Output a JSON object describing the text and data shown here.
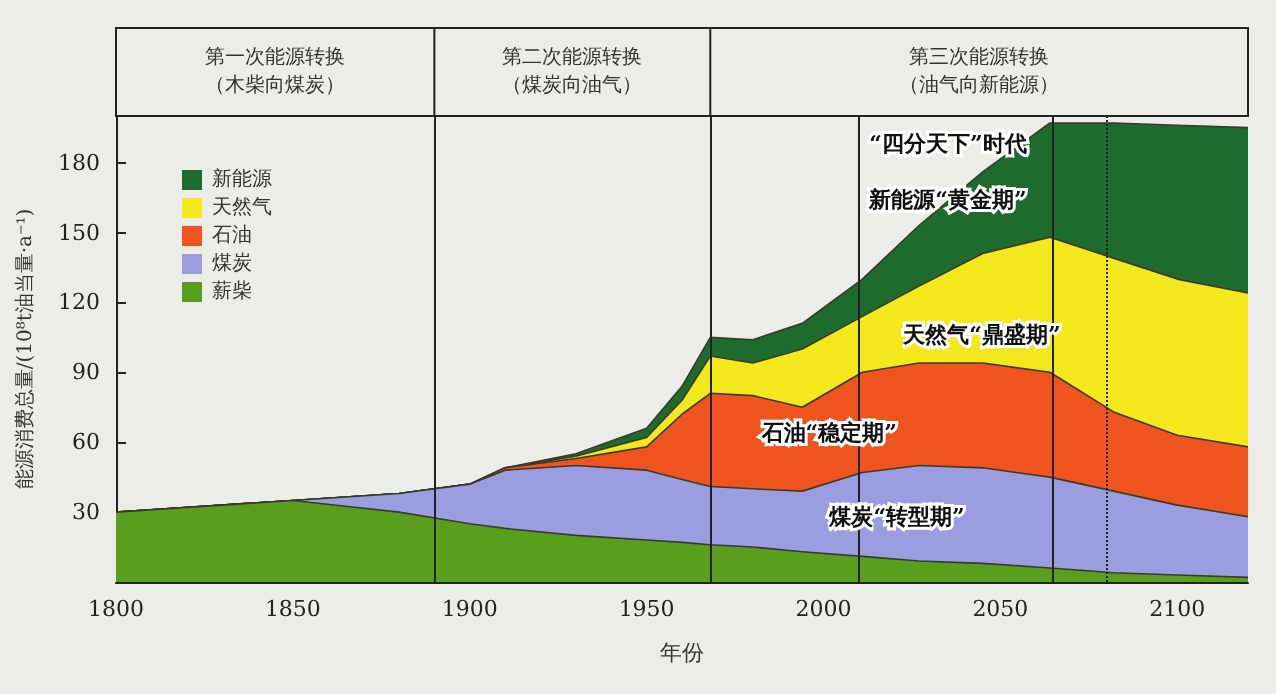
{
  "chart_data": {
    "type": "area",
    "stacked": true,
    "xlabel": "年份",
    "ylabel": "能源消费总量/(10⁸t油当量·a⁻¹)",
    "x": [
      1800,
      1850,
      1880,
      1900,
      1910,
      1930,
      1950,
      1960,
      1968,
      1980,
      1994,
      2011,
      2027,
      2045,
      2064,
      2082,
      2100,
      2120
    ],
    "xlim": [
      1800,
      2120
    ],
    "xticks": [
      1800,
      1850,
      1900,
      1950,
      2000,
      2050,
      2100
    ],
    "ylim": [
      0,
      200
    ],
    "yticks": [
      30,
      60,
      90,
      120,
      150,
      180
    ],
    "series": [
      {
        "name": "薪柴",
        "color": "#5a9e1e",
        "values": [
          30,
          35,
          30,
          25,
          23,
          20,
          18,
          17,
          16,
          15,
          13,
          11,
          9,
          8,
          6,
          4,
          3,
          2
        ]
      },
      {
        "name": "煤炭",
        "color": "#9a9ee0",
        "values": [
          0,
          0,
          8,
          17,
          25,
          30,
          30,
          27,
          25,
          25,
          26,
          36,
          41,
          41,
          39,
          35,
          30,
          26
        ]
      },
      {
        "name": "石油",
        "color": "#f0541e",
        "values": [
          0,
          0,
          0,
          0,
          1,
          3,
          10,
          28,
          40,
          40,
          36,
          43,
          44,
          45,
          45,
          34,
          30,
          30
        ]
      },
      {
        "name": "天然气",
        "color": "#f2e81c",
        "values": [
          0,
          0,
          0,
          0,
          0,
          1,
          4,
          6,
          16,
          14,
          25,
          24,
          33,
          47,
          58,
          66,
          67,
          66
        ]
      },
      {
        "name": "新能源",
        "color": "#1e6b2e",
        "values": [
          0,
          0,
          0,
          0,
          0,
          1,
          4,
          6,
          8,
          10,
          11,
          16,
          26,
          35,
          49,
          58,
          66,
          71
        ]
      }
    ],
    "ref_lines": [
      {
        "axis": "x",
        "value": 1890
      },
      {
        "axis": "x",
        "value": 1968
      },
      {
        "axis": "x",
        "value": 2010
      },
      {
        "axis": "x",
        "value": 2065
      },
      {
        "axis": "x",
        "value": 2080,
        "line_style": "dotted"
      }
    ],
    "annotations": [
      "第一次能源转换（木柴向煤炭）",
      "第二次能源转换（煤炭向油气）",
      "第三次能源转换（油气向新能源）",
      "“四分天下”时代",
      "新能源“黄金期”",
      "天然气“鼎盛期”",
      "石油“稳定期”",
      "煤炭“转型期”"
    ],
    "legend": "top left",
    "grid": false
  }
}
